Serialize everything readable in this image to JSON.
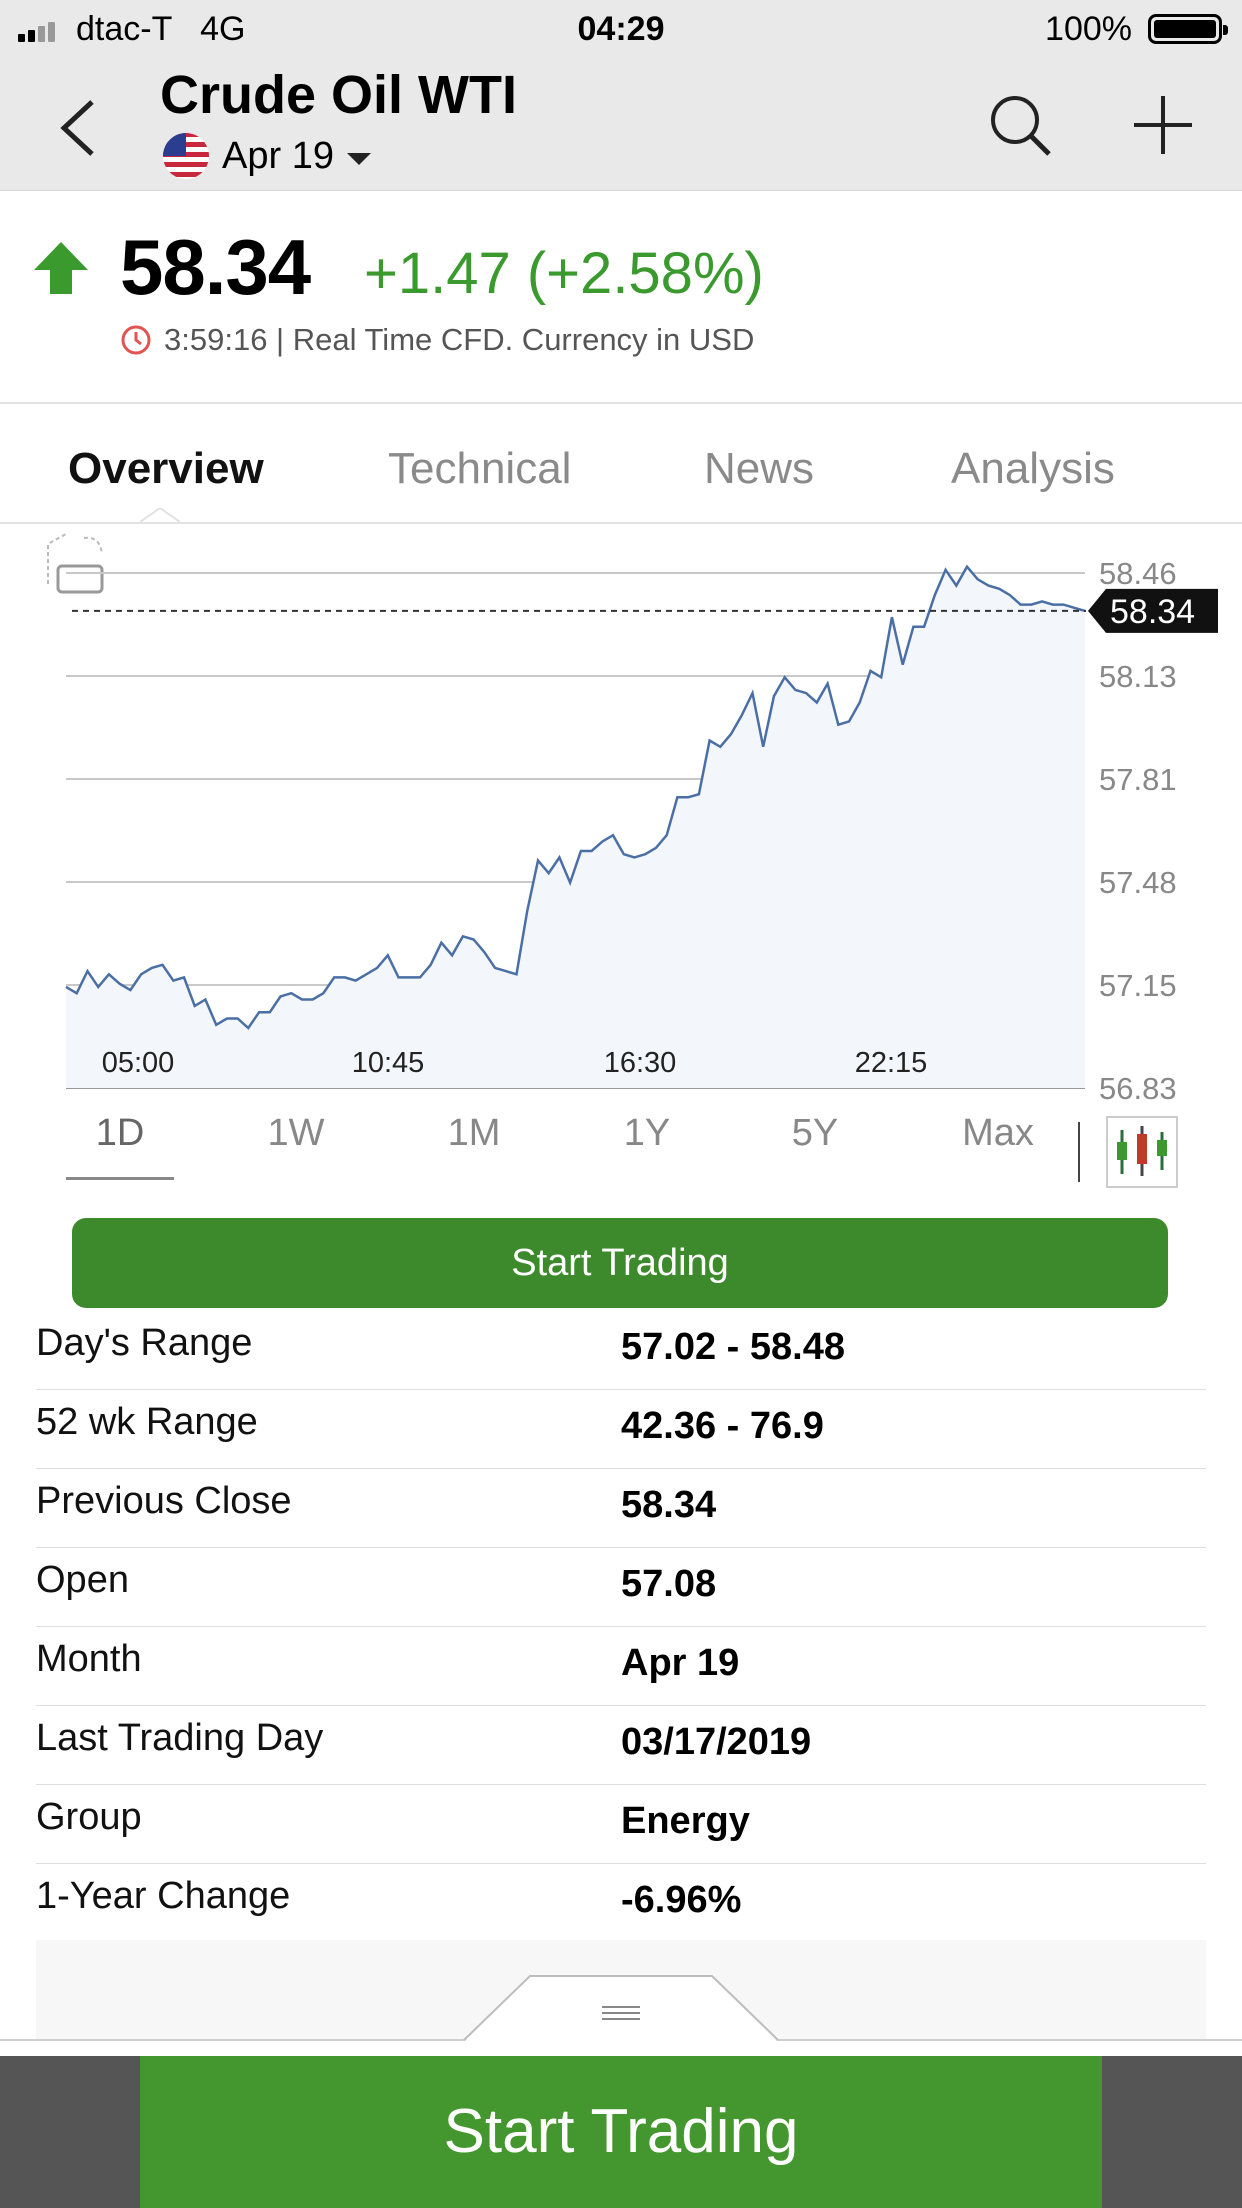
{
  "status_bar": {
    "carrier": "dtac-T   4G",
    "time": "04:29",
    "battery": "100%"
  },
  "header": {
    "title": "Crude Oil WTI",
    "contract": "Apr 19",
    "back_icon": "chevron-left-icon",
    "search_icon": "search-icon",
    "add_icon": "plus-icon"
  },
  "quote": {
    "price": "58.34",
    "change": "+1.47 (+2.58%)",
    "direction_icon": "arrow-up-icon",
    "time_note": "3:59:16 | Real Time CFD. Currency in USD",
    "up_color": "#3a9a2e"
  },
  "tabs": [
    {
      "label": "Overview",
      "active": true
    },
    {
      "label": "Technical",
      "active": false
    },
    {
      "label": "News",
      "active": false
    },
    {
      "label": "Analysis",
      "active": false
    }
  ],
  "chart_data": {
    "type": "area",
    "y_tick_labels": [
      "58.46",
      "58.13",
      "57.81",
      "57.48",
      "57.15",
      "56.83"
    ],
    "ylim": [
      56.83,
      58.46
    ],
    "x_tick_labels": [
      "05:00",
      "10:45",
      "16:30",
      "22:15"
    ],
    "current_value_label": "58.34",
    "current_value": 58.34,
    "grid": true,
    "series": [
      {
        "values": [
          57.15,
          57.13,
          57.2,
          57.15,
          57.19,
          57.16,
          57.14,
          57.19,
          57.21,
          57.22,
          57.17,
          57.18,
          57.09,
          57.11,
          57.03,
          57.05,
          57.05,
          57.02,
          57.07,
          57.07,
          57.12,
          57.13,
          57.11,
          57.11,
          57.13,
          57.18,
          57.18,
          57.17,
          57.19,
          57.21,
          57.25,
          57.18,
          57.18,
          57.18,
          57.22,
          57.29,
          57.25,
          57.31,
          57.3,
          57.26,
          57.21,
          57.2,
          57.19,
          57.39,
          57.55,
          57.51,
          57.56,
          57.48,
          57.58,
          57.58,
          57.61,
          57.63,
          57.57,
          57.56,
          57.57,
          57.59,
          57.63,
          57.75,
          57.75,
          57.76,
          57.93,
          57.91,
          57.95,
          58.01,
          58.08,
          57.91,
          58.07,
          58.13,
          58.09,
          58.08,
          58.05,
          58.11,
          57.98,
          57.99,
          58.05,
          58.15,
          58.13,
          58.32,
          58.17,
          58.29,
          58.29,
          58.39,
          58.47,
          58.42,
          58.48,
          58.44,
          58.42,
          58.41,
          58.39,
          58.36,
          58.36,
          58.37,
          58.36,
          58.36,
          58.35,
          58.34
        ]
      }
    ],
    "timeframes": [
      "1D",
      "1W",
      "1M",
      "1Y",
      "5Y",
      "Max"
    ],
    "active_timeframe": "1D",
    "line_color": "#4a6fa5"
  },
  "start_trading_label": "Start Trading",
  "stats": [
    {
      "label": "Day's Range",
      "value": "57.02 - 58.48"
    },
    {
      "label": "52 wk Range",
      "value": "42.36 - 76.9"
    },
    {
      "label": "Previous Close",
      "value": "58.34"
    },
    {
      "label": "Open",
      "value": "57.08"
    },
    {
      "label": "Month",
      "value": "Apr 19"
    },
    {
      "label": "Last Trading Day",
      "value": "03/17/2019"
    },
    {
      "label": "Group",
      "value": "Energy"
    },
    {
      "label": "1-Year Change",
      "value": "-6.96%"
    }
  ],
  "bottom_cta": "Start Trading"
}
